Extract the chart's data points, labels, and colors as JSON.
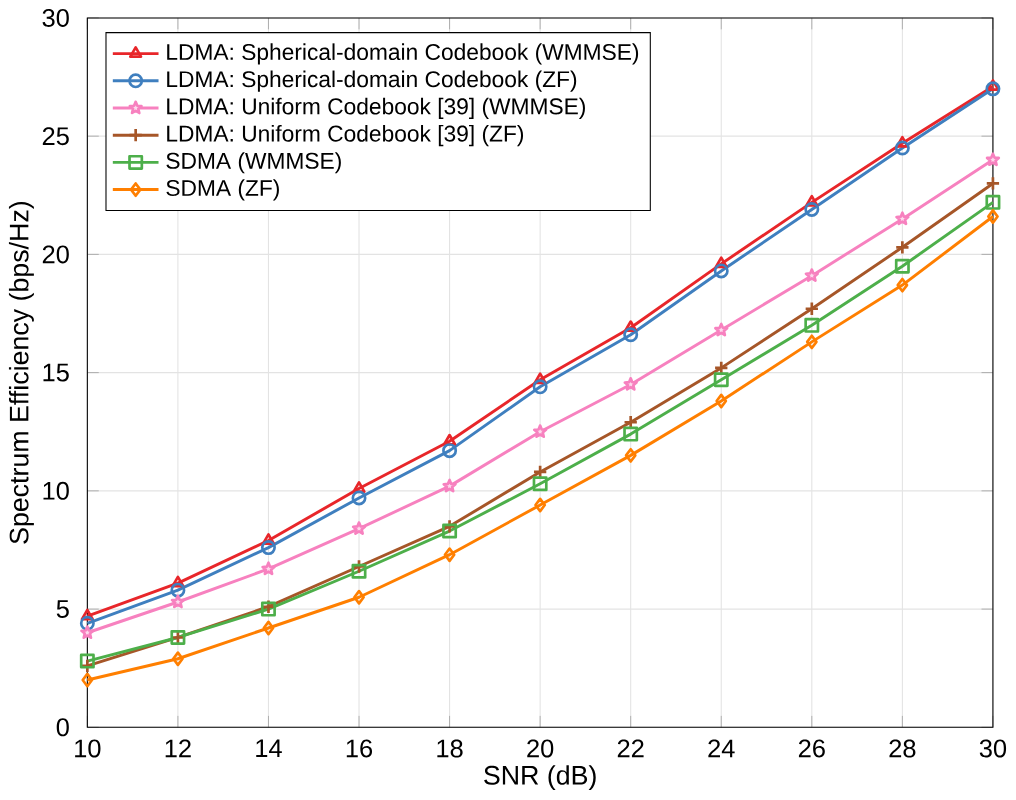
{
  "chart_data": {
    "type": "line",
    "xlabel": "SNR (dB)",
    "ylabel": "Spectrum Efficiency (bps/Hz)",
    "x": [
      10,
      12,
      14,
      16,
      18,
      20,
      22,
      24,
      26,
      28,
      30
    ],
    "series": [
      {
        "name": "LDMA: Spherical-domain Codebook (WMMSE)",
        "color": "#e8262a",
        "marker": "triangle",
        "values": [
          4.7,
          6.1,
          7.9,
          10.1,
          12.1,
          14.7,
          16.9,
          19.6,
          22.2,
          24.7,
          27.1
        ]
      },
      {
        "name": "LDMA: Spherical-domain Codebook (ZF)",
        "color": "#3f7fbf",
        "marker": "circle",
        "values": [
          4.4,
          5.8,
          7.6,
          9.7,
          11.7,
          14.4,
          16.6,
          19.3,
          21.9,
          24.5,
          27.0
        ]
      },
      {
        "name": "LDMA: Uniform Codebook [39] (WMMSE)",
        "color": "#f781bf",
        "marker": "star",
        "values": [
          4.0,
          5.3,
          6.7,
          8.4,
          10.2,
          12.5,
          14.5,
          16.8,
          19.1,
          21.5,
          24.0
        ]
      },
      {
        "name": "LDMA: Uniform Codebook [39] (ZF)",
        "color": "#a65628",
        "marker": "cross",
        "values": [
          2.6,
          3.8,
          5.1,
          6.8,
          8.5,
          10.8,
          12.9,
          15.2,
          17.7,
          20.3,
          23.0
        ]
      },
      {
        "name": "SDMA (WMMSE)",
        "color": "#4daf4a",
        "marker": "square",
        "values": [
          2.8,
          3.8,
          5.0,
          6.6,
          8.3,
          10.3,
          12.4,
          14.7,
          17.0,
          19.5,
          22.2
        ]
      },
      {
        "name": "SDMA (ZF)",
        "color": "#ff7f00",
        "marker": "diamond",
        "values": [
          2.0,
          2.9,
          4.2,
          5.5,
          7.3,
          9.4,
          11.5,
          13.8,
          16.3,
          18.7,
          21.6
        ]
      }
    ],
    "xlim": [
      10,
      30
    ],
    "ylim": [
      0,
      30
    ],
    "xticks": [
      10,
      12,
      14,
      16,
      18,
      20,
      22,
      24,
      26,
      28,
      30
    ],
    "yticks": [
      0,
      5,
      10,
      15,
      20,
      25,
      30
    ],
    "grid": true,
    "legend": "top left",
    "line_style": "solid"
  }
}
